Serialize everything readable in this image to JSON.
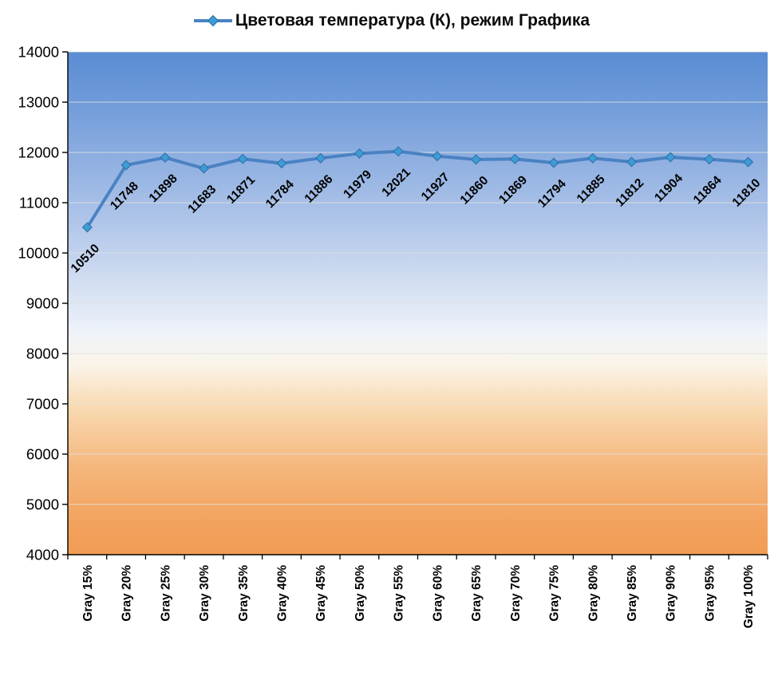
{
  "chart_data": {
    "type": "line",
    "title": "Цветовая температура (К), режим Графика",
    "categories": [
      "Gray 15%",
      "Gray 20%",
      "Gray 25%",
      "Gray 30%",
      "Gray 35%",
      "Gray 40%",
      "Gray 45%",
      "Gray 50%",
      "Gray 55%",
      "Gray 60%",
      "Gray 65%",
      "Gray 70%",
      "Gray 75%",
      "Gray 80%",
      "Gray 85%",
      "Gray 90%",
      "Gray 95%",
      "Gray 100%"
    ],
    "series": [
      {
        "name": "Цветовая температура (К), режим Графика",
        "values": [
          10510,
          11748,
          11898,
          11683,
          11871,
          11784,
          11886,
          11979,
          12021,
          11927,
          11860,
          11869,
          11794,
          11885,
          11812,
          11904,
          11864,
          11810
        ]
      }
    ],
    "xlabel": "",
    "ylabel": "",
    "ylim": [
      4000,
      14000
    ],
    "ytick_step": 1000,
    "grid": "horizontal",
    "legend_position": "top",
    "data_labels": true,
    "data_label_rotation": -45,
    "x_label_rotation": -90,
    "colors": {
      "line": "#4A82C3",
      "marker_fill": "#3D9BD5",
      "marker_stroke": "#2F6EA5",
      "data_label": "#000000",
      "axis": "#000000",
      "tick_label": "#000000",
      "gridline": "#E0E0E0"
    },
    "plot_gradient": [
      {
        "offset": 0.0,
        "color": "#5A8CD3"
      },
      {
        "offset": 0.1,
        "color": "#6F9BD9"
      },
      {
        "offset": 0.22,
        "color": "#90B0E1"
      },
      {
        "offset": 0.35,
        "color": "#B3C8EA"
      },
      {
        "offset": 0.48,
        "color": "#D8E2F3"
      },
      {
        "offset": 0.56,
        "color": "#EFF3FA"
      },
      {
        "offset": 0.62,
        "color": "#FAF4EA"
      },
      {
        "offset": 0.7,
        "color": "#F9DCB6"
      },
      {
        "offset": 0.82,
        "color": "#F5B87E"
      },
      {
        "offset": 0.93,
        "color": "#F2A35F"
      },
      {
        "offset": 1.0,
        "color": "#F19C53"
      }
    ]
  }
}
